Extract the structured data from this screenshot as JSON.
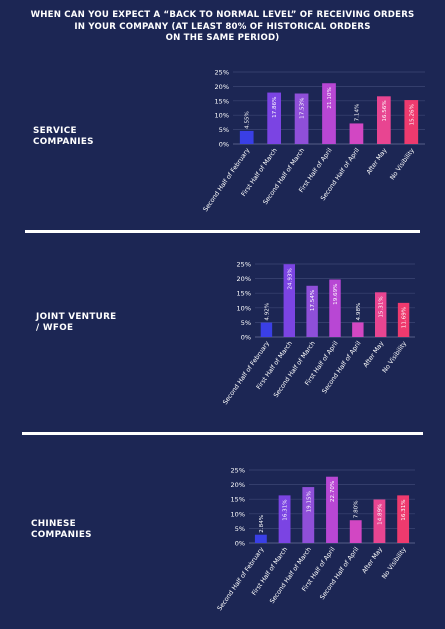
{
  "title": {
    "line1": "WHEN CAN YOU EXPECT A “BACK TO NORMAL LEVEL” OF RECEIVING ORDERS",
    "line2": "IN YOUR COMPANY (AT LEAST 80% OF HISTORICAL ORDERS",
    "line3": "ON THE SAME PERIOD)"
  },
  "panels": [
    {
      "label_line1": "SERVICE",
      "label_line2": "COMPANIES"
    },
    {
      "label_line1": "JOINT VENTURE",
      "label_line2": "/ WFOE"
    },
    {
      "label_line1": "CHINESE",
      "label_line2": "COMPANIES"
    }
  ],
  "colors": [
    "#3a3fe6",
    "#7b44e3",
    "#8f4fd9",
    "#b847d4",
    "#d247c3",
    "#e84591",
    "#ee3a6e"
  ],
  "chart_data": [
    {
      "type": "bar",
      "categories": [
        "Second Half of February",
        "First Half of March",
        "Second Half of March",
        "First Half of April",
        "Second Half of April",
        "After May",
        "No Visibility"
      ],
      "values": [
        4.55,
        17.86,
        17.53,
        21.1,
        7.14,
        16.56,
        15.26
      ],
      "value_labels": [
        "4.55%",
        "17.86%",
        "17.53%",
        "21.10%",
        "7.14%",
        "16.56%",
        "15.26%"
      ],
      "yticks": [
        "0%",
        "5%",
        "10%",
        "15%",
        "20%",
        "25%"
      ],
      "ylim": [
        0,
        25
      ]
    },
    {
      "type": "bar",
      "categories": [
        "Second Half of February",
        "First Half of March",
        "Second Half of March",
        "First Half of April",
        "Second Half of April",
        "After May",
        "No Visibility"
      ],
      "values": [
        4.92,
        24.93,
        17.54,
        19.69,
        4.98,
        15.31,
        11.69
      ],
      "value_labels": [
        "4.92%",
        "24.93%",
        "17.54%",
        "19.69%",
        "4.98%",
        "15.31%",
        "11.69%"
      ],
      "yticks": [
        "0%",
        "5%",
        "10%",
        "15%",
        "20%",
        "25%"
      ],
      "ylim": [
        0,
        25
      ]
    },
    {
      "type": "bar",
      "categories": [
        "Second Half of February",
        "First Half of March",
        "Second Half of March",
        "First Half of April",
        "Second Half of April",
        "After May",
        "No Visibility"
      ],
      "values": [
        2.84,
        16.31,
        19.15,
        22.7,
        7.8,
        14.89,
        16.31
      ],
      "value_labels": [
        "2.84%",
        "16.31%",
        "19.15%",
        "22.70%",
        "7.80%",
        "14.89%",
        "16.31%"
      ],
      "yticks": [
        "0%",
        "5%",
        "10%",
        "15%",
        "20%",
        "25%"
      ],
      "ylim": [
        0,
        25
      ]
    }
  ]
}
